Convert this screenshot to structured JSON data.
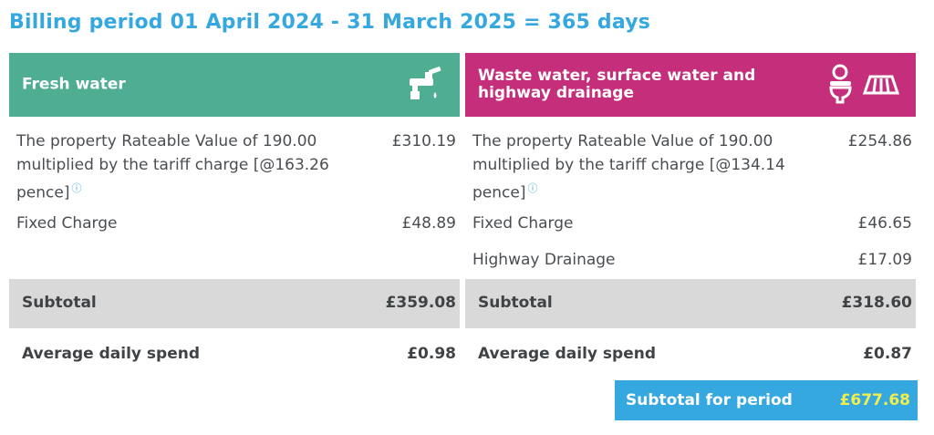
{
  "title": "Billing period 01 April 2024 - 31 March 2025 = 365 days",
  "fresh": {
    "heading": "Fresh water",
    "icon": "tap-icon",
    "rows": [
      {
        "label_lines": [
          "The property Rateable Value of 190.00",
          "multiplied  by the tariff charge [@163.26",
          "pence]"
        ],
        "info_icon": "ⓘ",
        "amount": "£310.19"
      },
      {
        "label": "Fixed Charge",
        "amount": "£48.89"
      }
    ],
    "subtotal_label": "Subtotal",
    "subtotal": "£359.08",
    "avg_label": "Average daily spend",
    "avg": "£0.98"
  },
  "waste": {
    "heading_lines": [
      "Waste water, surface water and",
      "highway drainage"
    ],
    "icons": [
      "toilet-icon",
      "drain-grate-icon"
    ],
    "rows": [
      {
        "label_lines": [
          "The property Rateable Value of 190.00",
          "multiplied  by the tariff charge [@134.14",
          "pence]"
        ],
        "info_icon": "ⓘ",
        "amount": "£254.86"
      },
      {
        "label": "Fixed Charge",
        "amount": "£46.65"
      },
      {
        "label": "Highway Drainage",
        "amount": "£17.09"
      }
    ],
    "subtotal_label": "Subtotal",
    "subtotal": "£318.60",
    "avg_label": "Average daily spend",
    "avg": "£0.87"
  },
  "total": {
    "label": "Subtotal for period",
    "amount": "£677.68"
  },
  "colors": {
    "fresh_header": "#4fae91",
    "waste_header": "#c42e7a",
    "title": "#36a8e0",
    "subtotal_bg": "#d9d9d9",
    "total_bg": "#36a8e0",
    "total_amount": "#f3ee4c"
  }
}
